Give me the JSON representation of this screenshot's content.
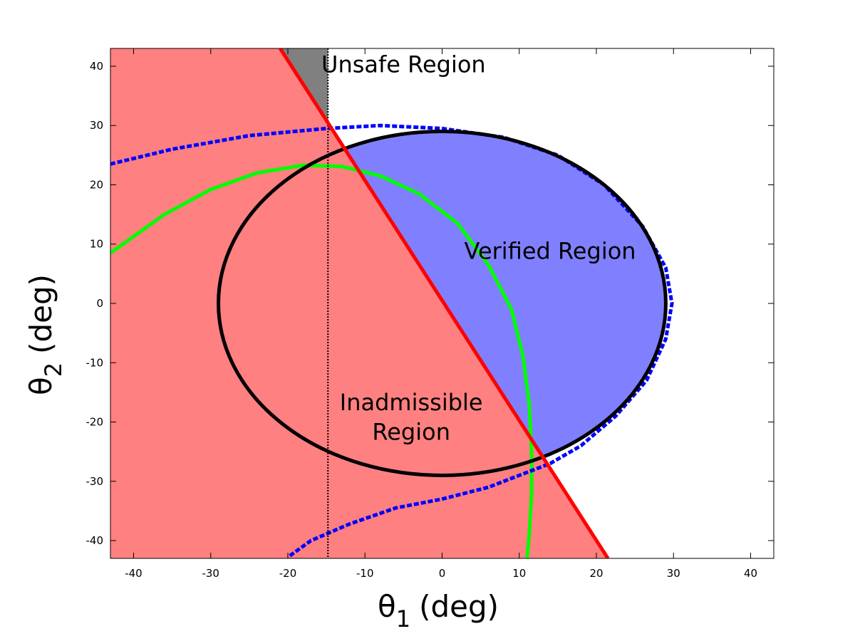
{
  "chart_data": {
    "type": "area",
    "title": "",
    "xlabel": {
      "symbol": "θ",
      "subscript": "1",
      "unit": "(deg)"
    },
    "ylabel": {
      "symbol": "θ",
      "subscript": "2",
      "unit": "(deg)"
    },
    "xlim": [
      -43,
      43
    ],
    "ylim": [
      -43,
      43
    ],
    "xticks": [
      -40,
      -30,
      -20,
      -10,
      0,
      10,
      20,
      30,
      40
    ],
    "yticks": [
      -40,
      -30,
      -20,
      -10,
      0,
      10,
      20,
      30,
      40
    ],
    "grid": false,
    "colors": {
      "inadmissible": "#ff8080",
      "verified": "#8080ff",
      "unsafe_gray": "#808080",
      "red_line": "#ff0000",
      "green_curve": "#00ff00",
      "blue_dashed": "#0000ff",
      "ellipse": "#000000"
    },
    "boundary_line": {
      "points": [
        [
          -21,
          43
        ],
        [
          21.5,
          -43
        ]
      ]
    },
    "vertical_limit": {
      "x": -14.8
    },
    "ellipse": {
      "center": [
        0,
        0
      ],
      "semi_axis_x": 29,
      "semi_axis_y": 29
    },
    "green_curve": {
      "points": [
        [
          -43,
          8.5
        ],
        [
          -36,
          15
        ],
        [
          -30,
          19.2
        ],
        [
          -24,
          22
        ],
        [
          -18,
          23.3
        ],
        [
          -13,
          23.1
        ],
        [
          -8,
          21.5
        ],
        [
          -3,
          18.5
        ],
        [
          2,
          13.5
        ],
        [
          6,
          6.5
        ],
        [
          9,
          -1
        ],
        [
          10.5,
          -9
        ],
        [
          11.3,
          -17
        ],
        [
          11.6,
          -25
        ],
        [
          11.6,
          -32
        ],
        [
          11.3,
          -39
        ],
        [
          11,
          -43
        ]
      ]
    },
    "blue_dashed_upper": {
      "points": [
        [
          -43,
          23.5
        ],
        [
          -35,
          26
        ],
        [
          -25,
          28.3
        ],
        [
          -15,
          29.5
        ],
        [
          -8,
          30
        ],
        [
          0,
          29.5
        ],
        [
          8,
          28
        ],
        [
          15,
          25
        ],
        [
          21,
          20
        ],
        [
          26,
          13
        ],
        [
          29,
          6
        ],
        [
          29.8,
          0
        ],
        [
          29,
          -6
        ],
        [
          26.5,
          -13
        ],
        [
          22.5,
          -19
        ],
        [
          18,
          -24
        ],
        [
          14,
          -27
        ],
        [
          10,
          -29
        ],
        [
          6,
          -31
        ],
        [
          0,
          -33
        ],
        [
          -6,
          -34.5
        ],
        [
          -12,
          -37.2
        ],
        [
          -17,
          -40
        ],
        [
          -20,
          -42.8
        ]
      ]
    },
    "regions": [
      {
        "name": "Unsafe Region",
        "anchor": [
          -5,
          39
        ]
      },
      {
        "name": "Verified Region",
        "anchor": [
          14,
          7.5
        ]
      },
      {
        "name": "Inadmissible",
        "anchor": [
          -4,
          -18
        ]
      },
      {
        "name": "Region",
        "anchor": [
          -4,
          -23
        ]
      }
    ]
  }
}
